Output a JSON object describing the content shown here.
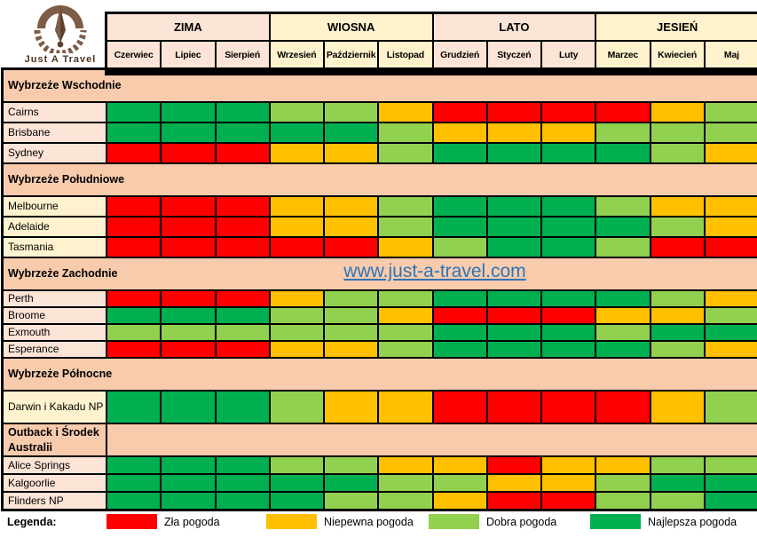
{
  "logo": {
    "text": "Just A Travel"
  },
  "watermark": {
    "text": "www.just-a-travel.com",
    "color": "#2E74B5"
  },
  "legend": {
    "title": "Legenda:",
    "items": [
      {
        "code": "r",
        "label": "Zła pogoda"
      },
      {
        "code": "y",
        "label": "Niepewna pogoda"
      },
      {
        "code": "lg",
        "label": "Dobra pogoda"
      },
      {
        "code": "dg",
        "label": "Najlepsza pogoda"
      }
    ]
  },
  "palette": {
    "r": "#FF0000",
    "y": "#FFC000",
    "lg": "#92D050",
    "dg": "#00B050",
    "section_bg": "#F8CBAD",
    "pink": "#FCE4D6",
    "cream": "#FFF3CF",
    "season_pink": "#FCE4D6",
    "season_yellow": "#FFF2CC"
  },
  "chart_data": {
    "type": "heatmap",
    "months": [
      "Czerwiec",
      "Lipiec",
      "Sierpień",
      "Wrzesień",
      "Październik",
      "Listopad",
      "Grudzień",
      "Styczeń",
      "Luty",
      "Marzec",
      "Kwiecień",
      "Maj"
    ],
    "seasons": [
      {
        "label": "ZIMA",
        "months": [
          "Czerwiec",
          "Lipiec",
          "Sierpień"
        ],
        "tone": "season_pink"
      },
      {
        "label": "WIOSNA",
        "months": [
          "Wrzesień",
          "Październik",
          "Listopad"
        ],
        "tone": "season_yellow"
      },
      {
        "label": "LATO",
        "months": [
          "Grudzień",
          "Styczeń",
          "Luty"
        ],
        "tone": "season_pink"
      },
      {
        "label": "JESIEŃ",
        "months": [
          "Marzec",
          "Kwiecień",
          "Maj"
        ],
        "tone": "season_yellow"
      }
    ],
    "value_labels": {
      "r": "Zła pogoda",
      "y": "Niepewna pogoda",
      "lg": "Dobra pogoda",
      "dg": "Najlepsza pogoda"
    },
    "sections": [
      {
        "name": "Wybrzeże Wschodnie",
        "tone": "pink",
        "divided": false,
        "rows": [
          {
            "name": "Cairns",
            "cells": [
              "dg",
              "dg",
              "dg",
              "lg",
              "lg",
              "y",
              "r",
              "r",
              "r",
              "r",
              "y",
              "lg"
            ]
          },
          {
            "name": "Brisbane",
            "cells": [
              "dg",
              "dg",
              "dg",
              "dg",
              "dg",
              "lg",
              "y",
              "y",
              "y",
              "lg",
              "lg",
              "lg"
            ]
          },
          {
            "name": "Sydney",
            "cells": [
              "r",
              "r",
              "r",
              "y",
              "y",
              "lg",
              "dg",
              "dg",
              "dg",
              "dg",
              "lg",
              "y"
            ]
          }
        ]
      },
      {
        "name": "Wybrzeże Południowe",
        "tone": "cream",
        "divided": false,
        "rows": [
          {
            "name": "Melbourne",
            "cells": [
              "r",
              "r",
              "r",
              "y",
              "y",
              "lg",
              "dg",
              "dg",
              "dg",
              "lg",
              "y",
              "y"
            ]
          },
          {
            "name": "Adelaide",
            "cells": [
              "r",
              "r",
              "r",
              "y",
              "y",
              "lg",
              "dg",
              "dg",
              "dg",
              "dg",
              "lg",
              "y"
            ]
          },
          {
            "name": "Tasmania",
            "cells": [
              "r",
              "r",
              "r",
              "r",
              "r",
              "y",
              "lg",
              "dg",
              "dg",
              "lg",
              "r",
              "r"
            ]
          }
        ]
      },
      {
        "name": "Wybrzeże Zachodnie",
        "tone": "pink",
        "divided": false,
        "rows": [
          {
            "name": "Perth",
            "cells": [
              "r",
              "r",
              "r",
              "y",
              "lg",
              "lg",
              "dg",
              "dg",
              "dg",
              "dg",
              "lg",
              "y"
            ]
          },
          {
            "name": "Broome",
            "cells": [
              "dg",
              "dg",
              "dg",
              "lg",
              "lg",
              "y",
              "r",
              "r",
              "r",
              "y",
              "y",
              "lg"
            ]
          },
          {
            "name": "Exmouth",
            "cells": [
              "lg",
              "lg",
              "lg",
              "lg",
              "lg",
              "lg",
              "dg",
              "dg",
              "dg",
              "lg",
              "dg",
              "dg"
            ]
          },
          {
            "name": "Esperance",
            "cells": [
              "r",
              "r",
              "r",
              "y",
              "y",
              "lg",
              "dg",
              "dg",
              "dg",
              "dg",
              "lg",
              "y"
            ]
          }
        ]
      },
      {
        "name": "Wybrzeże Północne",
        "tone": "cream",
        "divided": false,
        "rows": [
          {
            "name": "Darwin i Kakadu NP",
            "cells": [
              "dg",
              "dg",
              "dg",
              "lg",
              "y",
              "y",
              "r",
              "r",
              "r",
              "r",
              "y",
              "lg"
            ]
          }
        ]
      },
      {
        "name": "Outback i Środek Australii",
        "tone": "pink",
        "divided": true,
        "rows": [
          {
            "name": "Alice Springs",
            "cells": [
              "dg",
              "dg",
              "dg",
              "lg",
              "lg",
              "y",
              "y",
              "r",
              "y",
              "y",
              "lg",
              "lg"
            ]
          },
          {
            "name": "Kalgoorlie",
            "cells": [
              "dg",
              "dg",
              "dg",
              "dg",
              "dg",
              "lg",
              "lg",
              "y",
              "y",
              "lg",
              "dg",
              "dg"
            ]
          },
          {
            "name": "Flinders NP",
            "cells": [
              "dg",
              "dg",
              "dg",
              "dg",
              "lg",
              "lg",
              "y",
              "r",
              "r",
              "lg",
              "lg",
              "dg"
            ]
          }
        ]
      }
    ]
  }
}
